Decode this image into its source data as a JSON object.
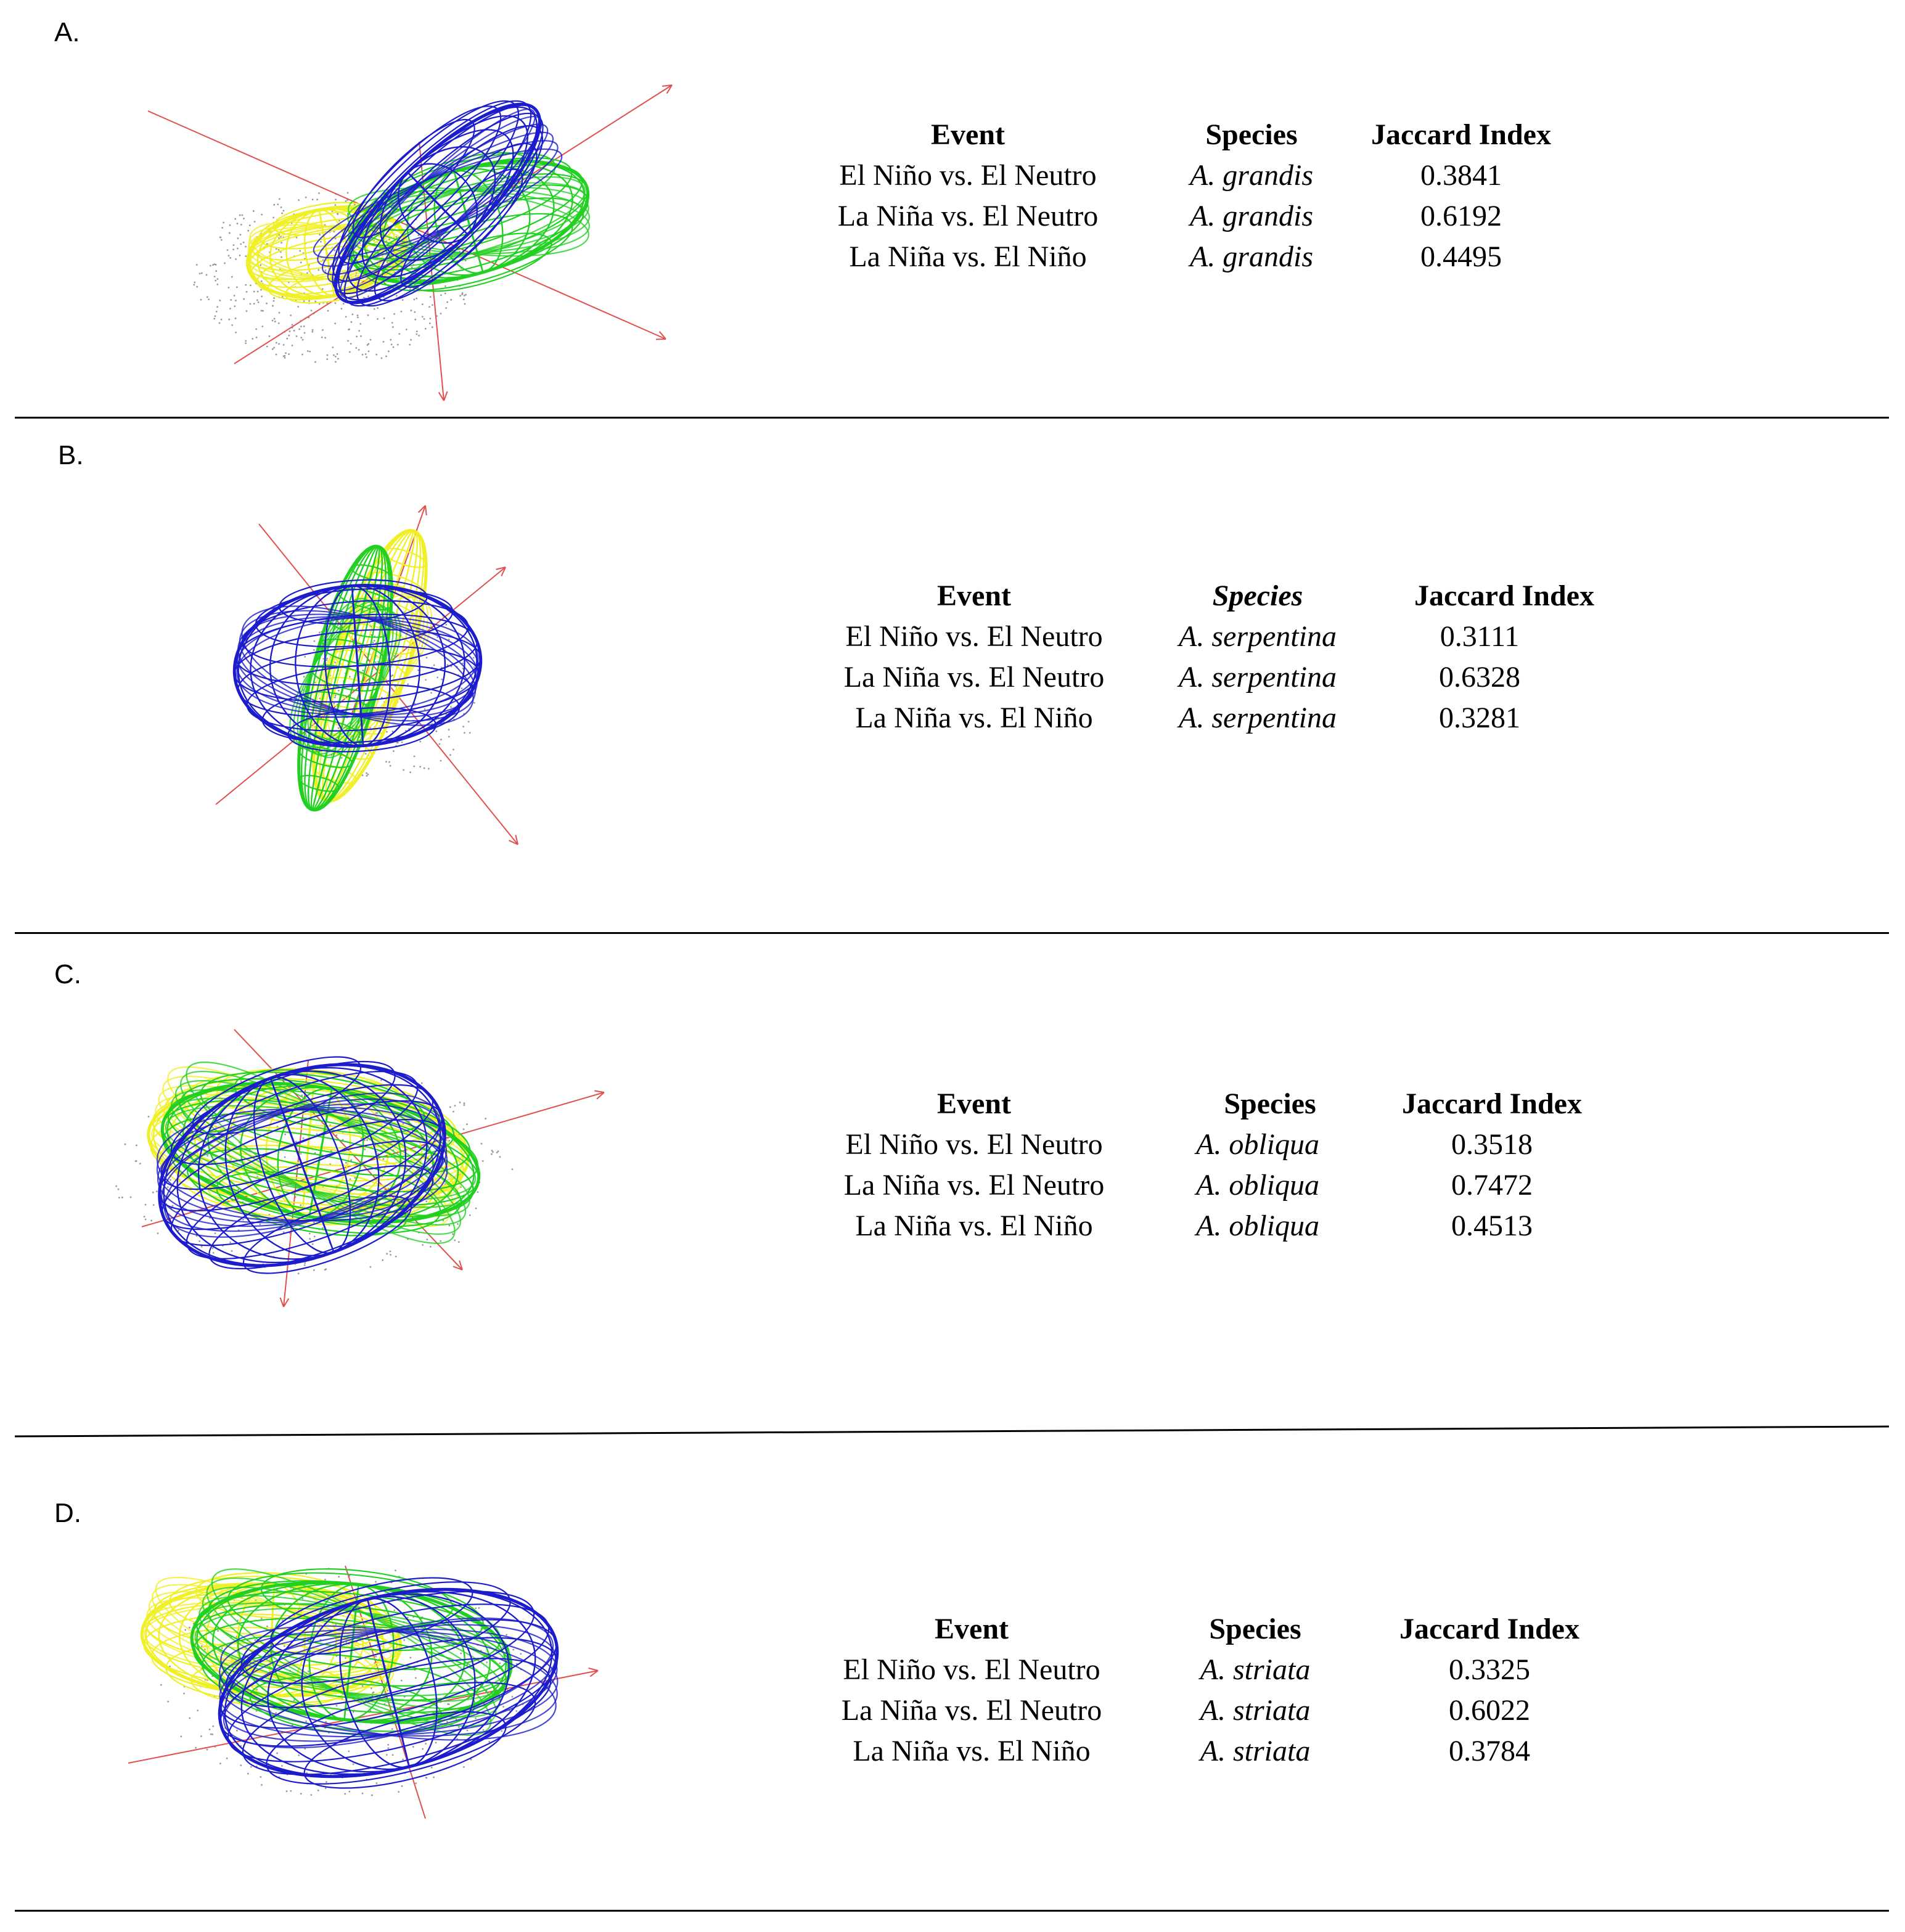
{
  "colors": {
    "axis": "#e0504f",
    "blue": "#1c1ccc",
    "green": "#22d022",
    "yellow": "#f0f028",
    "points": "#9a9a9a",
    "rule": "#000000"
  },
  "headers": {
    "event": "Event",
    "species": "Species",
    "jaccard": "Jaccard Index"
  },
  "panels": [
    {
      "letter": "A.",
      "rows": [
        {
          "event": "El Niño vs. El Neutro",
          "species": "A. grandis",
          "jaccard": "0.3841"
        },
        {
          "event": "La Niña vs. El Neutro",
          "species": "A. grandis",
          "jaccard": "0.6192"
        },
        {
          "event": "La Niña vs. El Niño",
          "species": "A. grandis",
          "jaccard": "0.4495"
        }
      ]
    },
    {
      "letter": "B.",
      "rows": [
        {
          "event": "El Niño vs. El Neutro",
          "species": "A. serpentina",
          "jaccard": "0.3111"
        },
        {
          "event": "La Niña vs. El Neutro",
          "species": "A. serpentina",
          "jaccard": "0.6328"
        },
        {
          "event": "La Niña vs. El Niño",
          "species": "A. serpentina",
          "jaccard": "0.3281"
        }
      ]
    },
    {
      "letter": "C.",
      "rows": [
        {
          "event": "El Niño vs. El Neutro",
          "species": "A. obliqua",
          "jaccard": "0.3518"
        },
        {
          "event": "La Niña vs. El Neutro",
          "species": "A. obliqua",
          "jaccard": "0.7472"
        },
        {
          "event": "La Niña vs. El Niño",
          "species": "A. obliqua",
          "jaccard": "0.4513"
        }
      ]
    },
    {
      "letter": "D.",
      "rows": [
        {
          "event": "El Niño vs. El Neutro",
          "species": "A. striata",
          "jaccard": "0.3325"
        },
        {
          "event": "La Niña vs. El Neutro",
          "species": "A. striata",
          "jaccard": "0.6022"
        },
        {
          "event": "La Niña vs. El Niño",
          "species": "A. striata",
          "jaccard": "0.3784"
        }
      ]
    }
  ]
}
